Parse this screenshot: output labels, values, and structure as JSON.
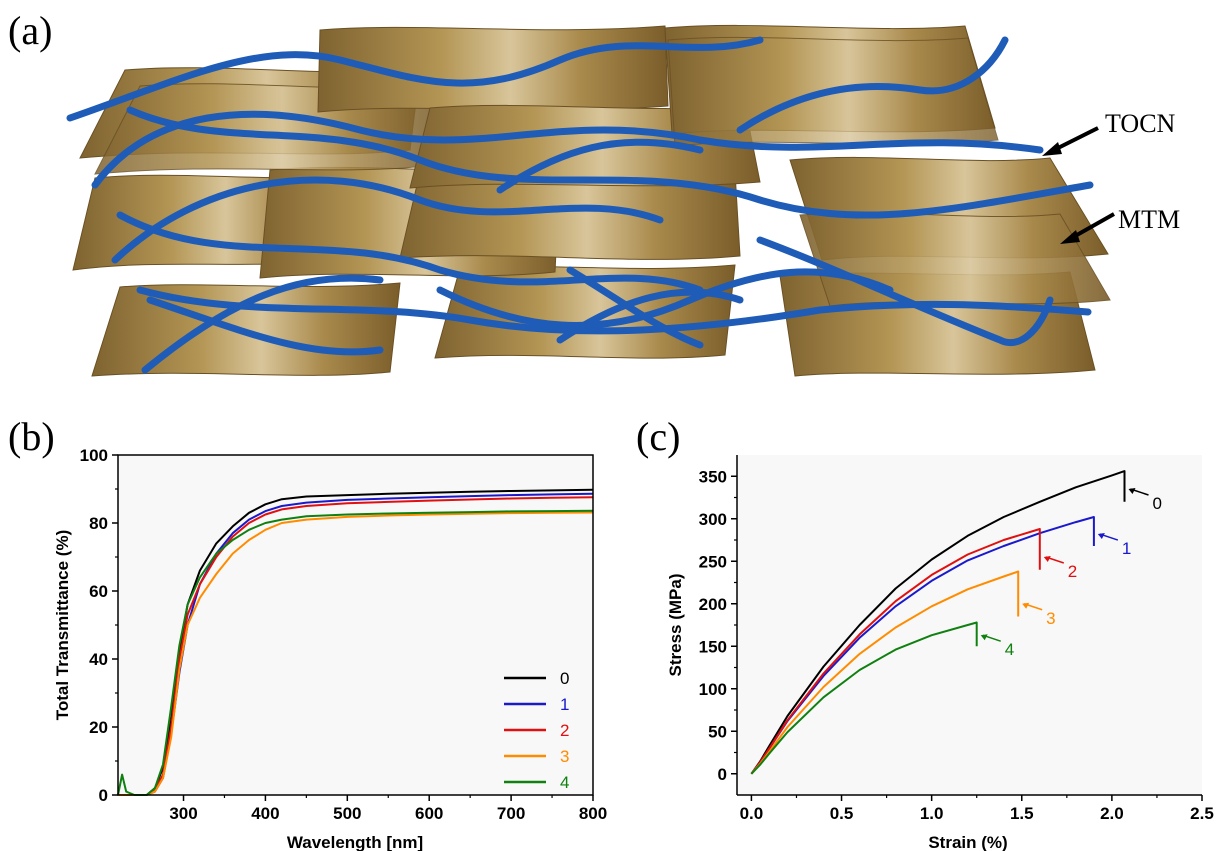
{
  "panels": {
    "a": "(a)",
    "b": "(b)",
    "c": "(c)"
  },
  "schematic": {
    "callouts": [
      "TOCN",
      "MTM"
    ],
    "fiber_color": "#1f5cb8",
    "sheet_color": "#a8864a"
  },
  "chart_data": [
    {
      "type": "line",
      "xlabel": "Wavelength [nm]",
      "ylabel": "Total Transmittance (%)",
      "xlim": [
        220,
        800
      ],
      "ylim": [
        0,
        100
      ],
      "xticks": [
        300,
        400,
        500,
        600,
        700,
        800
      ],
      "yticks": [
        0,
        20,
        40,
        60,
        80,
        100
      ],
      "grid": false,
      "legend_position": "bottom-right",
      "series": [
        {
          "name": "0",
          "color": "#000000",
          "x": [
            220,
            240,
            255,
            265,
            275,
            285,
            295,
            305,
            320,
            340,
            360,
            380,
            400,
            420,
            450,
            500,
            550,
            600,
            650,
            700,
            750,
            800
          ],
          "y": [
            0,
            0,
            0,
            2,
            8,
            22,
            42,
            56,
            66,
            74,
            79,
            83,
            85.5,
            87,
            87.8,
            88.2,
            88.6,
            88.9,
            89.2,
            89.4,
            89.6,
            89.8
          ]
        },
        {
          "name": "1",
          "color": "#1a1acc",
          "x": [
            220,
            240,
            255,
            265,
            275,
            285,
            295,
            305,
            320,
            340,
            360,
            380,
            400,
            420,
            450,
            500,
            550,
            600,
            650,
            700,
            750,
            800
          ],
          "y": [
            0,
            0,
            0,
            1,
            5,
            18,
            36,
            50,
            62,
            71,
            77,
            81,
            83.5,
            85,
            86,
            86.8,
            87.2,
            87.6,
            87.9,
            88.2,
            88.4,
            88.6
          ]
        },
        {
          "name": "2",
          "color": "#e01010",
          "x": [
            220,
            240,
            255,
            265,
            275,
            285,
            295,
            305,
            320,
            340,
            360,
            380,
            400,
            420,
            450,
            500,
            550,
            600,
            650,
            700,
            750,
            800
          ],
          "y": [
            0,
            0,
            0,
            1.5,
            6,
            20,
            40,
            53,
            62,
            70,
            76,
            80,
            82.5,
            84,
            85,
            85.8,
            86.2,
            86.6,
            86.9,
            87.2,
            87.4,
            87.6
          ]
        },
        {
          "name": "3",
          "color": "#ff8c00",
          "x": [
            220,
            240,
            255,
            265,
            275,
            285,
            295,
            305,
            320,
            340,
            360,
            380,
            400,
            420,
            450,
            500,
            550,
            600,
            650,
            700,
            750,
            800
          ],
          "y": [
            0,
            0,
            0,
            1,
            5,
            17,
            37,
            50,
            58,
            65,
            71,
            75,
            78,
            80,
            81,
            81.8,
            82.2,
            82.5,
            82.7,
            82.9,
            83.0,
            83.1
          ]
        },
        {
          "name": "4",
          "color": "#108010",
          "x": [
            220,
            225,
            230,
            240,
            255,
            265,
            275,
            285,
            295,
            305,
            320,
            340,
            360,
            380,
            400,
            420,
            450,
            500,
            550,
            600,
            650,
            700,
            750,
            800
          ],
          "y": [
            0,
            6,
            1,
            0,
            0,
            2,
            9,
            26,
            44,
            56,
            64,
            71,
            75,
            78,
            80,
            81,
            82,
            82.5,
            82.8,
            83,
            83.2,
            83.4,
            83.5,
            83.6
          ]
        }
      ]
    },
    {
      "type": "line",
      "xlabel": "Strain (%)",
      "ylabel": "Stress (MPa)",
      "xlim": [
        -0.08,
        2.5
      ],
      "ylim": [
        -25,
        375
      ],
      "xticks": [
        0.0,
        0.5,
        1.0,
        1.5,
        2.0,
        2.5
      ],
      "xtick_labels": [
        "0.0",
        "0.5",
        "1.0",
        "1.5",
        "2.0",
        "2.5"
      ],
      "yticks": [
        0,
        50,
        100,
        150,
        200,
        250,
        300,
        350
      ],
      "grid": false,
      "series": [
        {
          "name": "0",
          "color": "#000000",
          "x": [
            0,
            0.05,
            0.1,
            0.2,
            0.4,
            0.6,
            0.8,
            1.0,
            1.2,
            1.4,
            1.6,
            1.8,
            2.0,
            2.07,
            2.07
          ],
          "y": [
            0,
            15,
            33,
            68,
            126,
            175,
            218,
            252,
            280,
            302,
            320,
            337,
            351,
            356,
            320
          ]
        },
        {
          "name": "1",
          "color": "#1a1acc",
          "x": [
            0,
            0.05,
            0.1,
            0.2,
            0.4,
            0.6,
            0.8,
            1.0,
            1.2,
            1.4,
            1.6,
            1.8,
            1.9,
            1.9
          ],
          "y": [
            0,
            14,
            30,
            62,
            115,
            160,
            197,
            227,
            251,
            268,
            283,
            296,
            302,
            268
          ]
        },
        {
          "name": "2",
          "color": "#e01010",
          "x": [
            0,
            0.05,
            0.1,
            0.2,
            0.4,
            0.6,
            0.8,
            1.0,
            1.2,
            1.4,
            1.6,
            1.6
          ],
          "y": [
            0,
            14,
            30,
            63,
            118,
            164,
            203,
            234,
            258,
            275,
            288,
            240
          ]
        },
        {
          "name": "3",
          "color": "#ff8c00",
          "x": [
            0,
            0.05,
            0.1,
            0.2,
            0.4,
            0.6,
            0.8,
            1.0,
            1.2,
            1.4,
            1.48,
            1.48
          ],
          "y": [
            0,
            12,
            26,
            55,
            102,
            141,
            172,
            197,
            217,
            232,
            238,
            185
          ]
        },
        {
          "name": "4",
          "color": "#108010",
          "x": [
            0,
            0.05,
            0.1,
            0.2,
            0.4,
            0.6,
            0.8,
            1.0,
            1.2,
            1.25,
            1.25
          ],
          "y": [
            0,
            11,
            24,
            49,
            90,
            122,
            146,
            163,
            175,
            178,
            150
          ]
        }
      ],
      "end_labels": [
        {
          "text": "0",
          "x": 2.07,
          "y": 335
        },
        {
          "text": "1",
          "x": 1.9,
          "y": 282
        },
        {
          "text": "2",
          "x": 1.6,
          "y": 255
        },
        {
          "text": "3",
          "x": 1.48,
          "y": 200
        },
        {
          "text": "4",
          "x": 1.25,
          "y": 163
        }
      ]
    }
  ]
}
